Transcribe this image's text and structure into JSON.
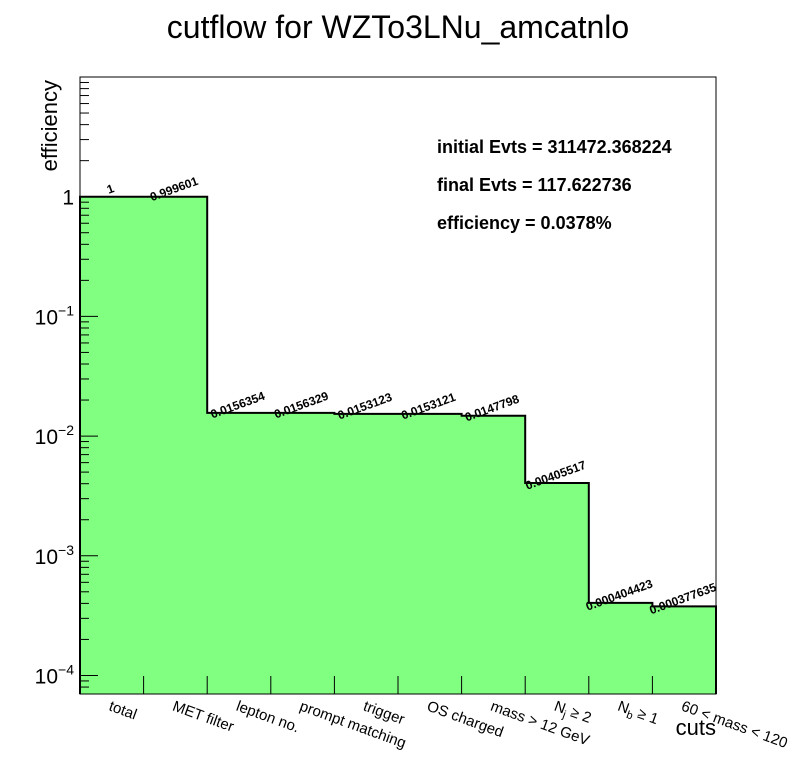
{
  "chart_data": {
    "type": "bar",
    "title": "cutflow for WZTo3LNu_amcatnlo",
    "xlabel": "cuts",
    "ylabel": "efficiency",
    "yscale": "log",
    "ylim": [
      7e-05,
      10
    ],
    "fill_color": "#80ff80",
    "outline_color": "#000000",
    "categories": [
      {
        "main": "total",
        "sub": "",
        "rest": ""
      },
      {
        "main": "MET filter",
        "sub": "",
        "rest": ""
      },
      {
        "main": "lepton no.",
        "sub": "",
        "rest": ""
      },
      {
        "main": "prompt matching",
        "sub": "",
        "rest": ""
      },
      {
        "main": "trigger",
        "sub": "",
        "rest": ""
      },
      {
        "main": "OS charged",
        "sub": "",
        "rest": ""
      },
      {
        "main": "mass > 12 GeV",
        "sub": "",
        "rest": ""
      },
      {
        "main": "N",
        "sub": "j",
        "rest": " ≥ 2"
      },
      {
        "main": "N",
        "sub": "b",
        "rest": " ≥ 1"
      },
      {
        "main": "60 < mass < 120",
        "sub": "",
        "rest": ""
      }
    ],
    "values": [
      1,
      0.999601,
      0.0156354,
      0.0156329,
      0.0153123,
      0.0153121,
      0.0147798,
      0.00405517,
      0.000404423,
      0.000377635
    ],
    "value_labels": [
      "1",
      "0.999601",
      "0.0156354",
      "0.0156329",
      "0.0153123",
      "0.0153121",
      "0.0147798",
      "0.00405517",
      "0.000404423",
      "0.000377635"
    ],
    "yticks": [
      {
        "value": 1,
        "base": "1",
        "exp": ""
      },
      {
        "value": 0.1,
        "base": "10",
        "exp": "−1"
      },
      {
        "value": 0.01,
        "base": "10",
        "exp": "−2"
      },
      {
        "value": 0.001,
        "base": "10",
        "exp": "−3"
      },
      {
        "value": 0.0001,
        "base": "10",
        "exp": "−4"
      }
    ],
    "annotations": [
      "initial Evts = 311472.368224",
      "final Evts = 117.622736",
      "efficiency = 0.0378%"
    ]
  }
}
